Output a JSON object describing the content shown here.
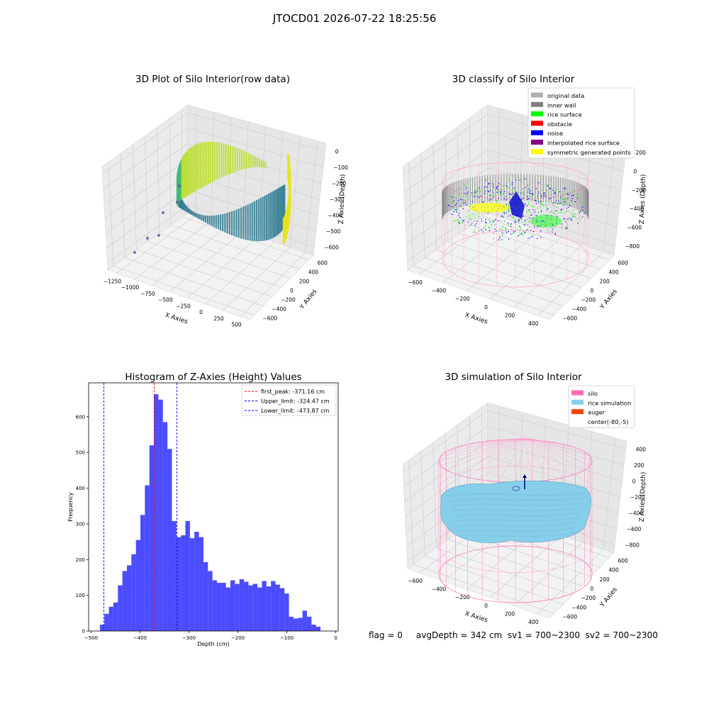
{
  "figure": {
    "suptitle": "JTOCD01 2026-07-22 18:25:56",
    "footer": "flag = 0     avgDepth = 342 cm  sv1 = 700~2300  sv2 = 700~2300"
  },
  "panels": {
    "raw": {
      "title": "3D Plot of Silo Interior(row data)",
      "xlabel": "X Axies",
      "ylabel": "Y Axies",
      "zlabel": "Z Axies (Depth)",
      "xticks": [
        "−1250",
        "−1000",
        "−750",
        "−500",
        "−250",
        "0",
        "250",
        "500"
      ],
      "yticks": [
        "600",
        "400",
        "200",
        "0",
        "−200",
        "−400",
        "−600"
      ],
      "zticks": [
        "0",
        "−100",
        "−200",
        "−300",
        "−400",
        "−500",
        "−600"
      ]
    },
    "classify": {
      "title": "3D classify of Silo Interior",
      "xlabel": "X Axies",
      "ylabel": "Y Axies",
      "zlabel": "Z Axies (Depth)",
      "xticks": [
        "−600",
        "−400",
        "−200",
        "0",
        "200",
        "400"
      ],
      "yticks": [
        "600",
        "400",
        "200",
        "0",
        "−200",
        "−400",
        "−600"
      ],
      "zticks": [
        "200",
        "0",
        "−200",
        "−400",
        "−600",
        "−800"
      ],
      "legend": [
        {
          "label": "original data",
          "color": "#b0b0b0"
        },
        {
          "label": "inner wall",
          "color": "#808080"
        },
        {
          "label": "rice surface",
          "color": "#00ff00"
        },
        {
          "label": "obstacle",
          "color": "#ff0000"
        },
        {
          "label": "noise",
          "color": "#0000ff"
        },
        {
          "label": "interpolated rice surface",
          "color": "#800080"
        },
        {
          "label": "symmetric generated points",
          "color": "#ffff00"
        }
      ]
    },
    "simulation": {
      "title": "3D simulation of Silo Interior",
      "xlabel": "X Axies",
      "ylabel": "Y Axies",
      "zlabel": "Z Axies (Depth)",
      "xticks": [
        "−600",
        "−400",
        "−200",
        "0",
        "200",
        "400"
      ],
      "yticks": [
        "600",
        "400",
        "200",
        "0",
        "−200",
        "−400",
        "−600"
      ],
      "zticks": [
        "400",
        "200",
        "0",
        "−200",
        "−400",
        "−600",
        "−800"
      ],
      "legend": [
        {
          "label": "silo",
          "color": "#ff69b4"
        },
        {
          "label": "rice simulation",
          "color": "#87ceeb"
        },
        {
          "label": "auger",
          "color": "#ff4500"
        },
        {
          "label": "center(-80,-5)",
          "color": ""
        }
      ]
    }
  },
  "chart_data": {
    "type": "bar",
    "title": "Histogram of Z-Axies (Height) Values",
    "xlabel": "Depth (cm)",
    "ylabel": "Frequency",
    "xlim": [
      -505,
      5
    ],
    "ylim": [
      0,
      695
    ],
    "xticks": [
      -500,
      -400,
      -300,
      -200,
      -100,
      0
    ],
    "yticks": [
      0,
      100,
      200,
      300,
      400,
      500,
      600
    ],
    "bar_color": "#0000ff",
    "bins_start": -482,
    "bin_width": 9.2,
    "values": [
      18,
      48,
      68,
      80,
      128,
      168,
      184,
      215,
      255,
      325,
      408,
      520,
      663,
      648,
      585,
      510,
      308,
      263,
      268,
      308,
      260,
      278,
      263,
      193,
      168,
      142,
      135,
      135,
      122,
      142,
      132,
      145,
      138,
      128,
      132,
      122,
      140,
      125,
      140,
      130,
      120,
      105,
      40,
      35,
      37,
      57,
      40,
      18,
      12
    ],
    "vlines": [
      {
        "x": -371.16,
        "color": "#ff0000",
        "label": "first_peak: -371.16 cm"
      },
      {
        "x": -324.47,
        "color": "#0000ff",
        "label": "Upper_limit: -324.47 cm"
      },
      {
        "x": -473.87,
        "color": "#0000ff",
        "label": "Lower_limit: -473.87 cm"
      }
    ],
    "legend_position": "top-right"
  }
}
